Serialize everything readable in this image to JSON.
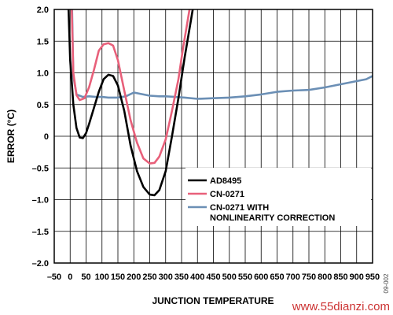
{
  "chart_data": {
    "type": "line",
    "xlabel": "JUNCTION TEMPERATURE",
    "ylabel": "ERROR (°C)",
    "xlim": [
      -50,
      950
    ],
    "ylim": [
      -2.0,
      2.0
    ],
    "x_ticks": [
      -50,
      0,
      50,
      100,
      150,
      200,
      250,
      300,
      350,
      400,
      450,
      500,
      550,
      600,
      650,
      700,
      750,
      800,
      850,
      900,
      950
    ],
    "y_ticks": [
      -2.0,
      -1.5,
      -1.0,
      -0.5,
      0,
      0.5,
      1.0,
      1.5,
      2.0
    ],
    "x_tick_labels": [
      "–50",
      "0",
      "50",
      "100",
      "150",
      "200",
      "250",
      "300",
      "350",
      "400",
      "450",
      "500",
      "550",
      "600",
      "650",
      "700",
      "750",
      "800",
      "850",
      "900",
      "950"
    ],
    "y_tick_labels": [
      "–2.0",
      "–1.5",
      "–1.0",
      "–0.5",
      "0",
      "0.5",
      "1.0",
      "1.5",
      "2.0"
    ],
    "grid": true,
    "legend_position": "center-right",
    "series": [
      {
        "name": "AD8495",
        "color": "#000000",
        "points": [
          [
            -5,
            2.0
          ],
          [
            0,
            1.2
          ],
          [
            10,
            0.5
          ],
          [
            20,
            0.13
          ],
          [
            30,
            -0.02
          ],
          [
            40,
            -0.03
          ],
          [
            50,
            0.05
          ],
          [
            60,
            0.2
          ],
          [
            75,
            0.45
          ],
          [
            90,
            0.7
          ],
          [
            105,
            0.9
          ],
          [
            120,
            0.97
          ],
          [
            135,
            0.95
          ],
          [
            150,
            0.8
          ],
          [
            170,
            0.4
          ],
          [
            190,
            -0.15
          ],
          [
            210,
            -0.55
          ],
          [
            230,
            -0.8
          ],
          [
            250,
            -0.92
          ],
          [
            265,
            -0.93
          ],
          [
            280,
            -0.85
          ],
          [
            300,
            -0.55
          ],
          [
            320,
            0.0
          ],
          [
            340,
            0.6
          ],
          [
            360,
            1.25
          ],
          [
            380,
            1.85
          ],
          [
            385,
            2.0
          ]
        ]
      },
      {
        "name": "CN-0271",
        "color": "#e8607a",
        "points": [
          [
            5,
            2.0
          ],
          [
            10,
            1.0
          ],
          [
            20,
            0.65
          ],
          [
            30,
            0.57
          ],
          [
            45,
            0.6
          ],
          [
            60,
            0.78
          ],
          [
            75,
            1.05
          ],
          [
            90,
            1.35
          ],
          [
            105,
            1.45
          ],
          [
            120,
            1.47
          ],
          [
            135,
            1.43
          ],
          [
            150,
            1.2
          ],
          [
            170,
            0.72
          ],
          [
            190,
            0.25
          ],
          [
            210,
            -0.1
          ],
          [
            230,
            -0.35
          ],
          [
            250,
            -0.43
          ],
          [
            265,
            -0.42
          ],
          [
            280,
            -0.32
          ],
          [
            300,
            -0.05
          ],
          [
            320,
            0.4
          ],
          [
            340,
            0.9
          ],
          [
            355,
            1.4
          ],
          [
            370,
            1.85
          ],
          [
            375,
            2.0
          ]
        ]
      },
      {
        "name": "CN-0271 WITH NONLINEARITY CORRECTION",
        "color": "#6b8fb5",
        "points": [
          [
            6,
            2.0
          ],
          [
            10,
            0.95
          ],
          [
            20,
            0.66
          ],
          [
            40,
            0.62
          ],
          [
            60,
            0.63
          ],
          [
            80,
            0.62
          ],
          [
            100,
            0.62
          ],
          [
            120,
            0.61
          ],
          [
            150,
            0.61
          ],
          [
            175,
            0.63
          ],
          [
            200,
            0.69
          ],
          [
            220,
            0.67
          ],
          [
            250,
            0.64
          ],
          [
            280,
            0.63
          ],
          [
            300,
            0.63
          ],
          [
            330,
            0.62
          ],
          [
            360,
            0.61
          ],
          [
            400,
            0.59
          ],
          [
            450,
            0.6
          ],
          [
            500,
            0.61
          ],
          [
            550,
            0.63
          ],
          [
            600,
            0.66
          ],
          [
            650,
            0.7
          ],
          [
            700,
            0.72
          ],
          [
            750,
            0.73
          ],
          [
            800,
            0.77
          ],
          [
            850,
            0.82
          ],
          [
            900,
            0.87
          ],
          [
            930,
            0.9
          ],
          [
            950,
            0.95
          ]
        ]
      }
    ]
  },
  "figure_id": "09-002",
  "watermark": "www.55dianzi.com"
}
